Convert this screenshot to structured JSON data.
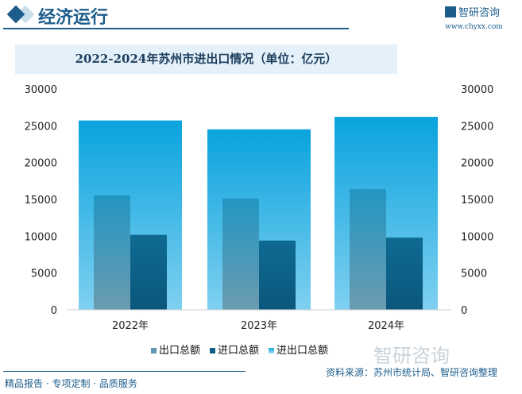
{
  "header": {
    "section_title": "经济运行",
    "brand": "智研咨询",
    "url": "www.chyxx.com"
  },
  "footer": {
    "tagline": "精品报告 · 专项定制 · 品质服务",
    "source": "资料来源：苏州市统计局、智研咨询整理",
    "watermark": "智研咨询"
  },
  "colors": {
    "export": "#5b97b3",
    "import": "#0d5f86",
    "total": "#12a7df"
  },
  "chart_data": {
    "type": "bar",
    "title": "2022-2024年苏州市进出口情况（单位：亿元）",
    "categories": [
      "2022年",
      "2023年",
      "2024年"
    ],
    "series": [
      {
        "name": "出口总额",
        "values": [
          15543,
          15107,
          16409
        ]
      },
      {
        "name": "进口总额",
        "values": [
          10178,
          9407,
          9804
        ]
      },
      {
        "name": "进出口总额",
        "values": [
          25721,
          24514,
          26213
        ]
      }
    ],
    "ylim": [
      0,
      30000
    ],
    "yticks": [
      "0",
      "5000",
      "10000",
      "15000",
      "20000",
      "25000",
      "30000"
    ],
    "legend": "bottom"
  }
}
